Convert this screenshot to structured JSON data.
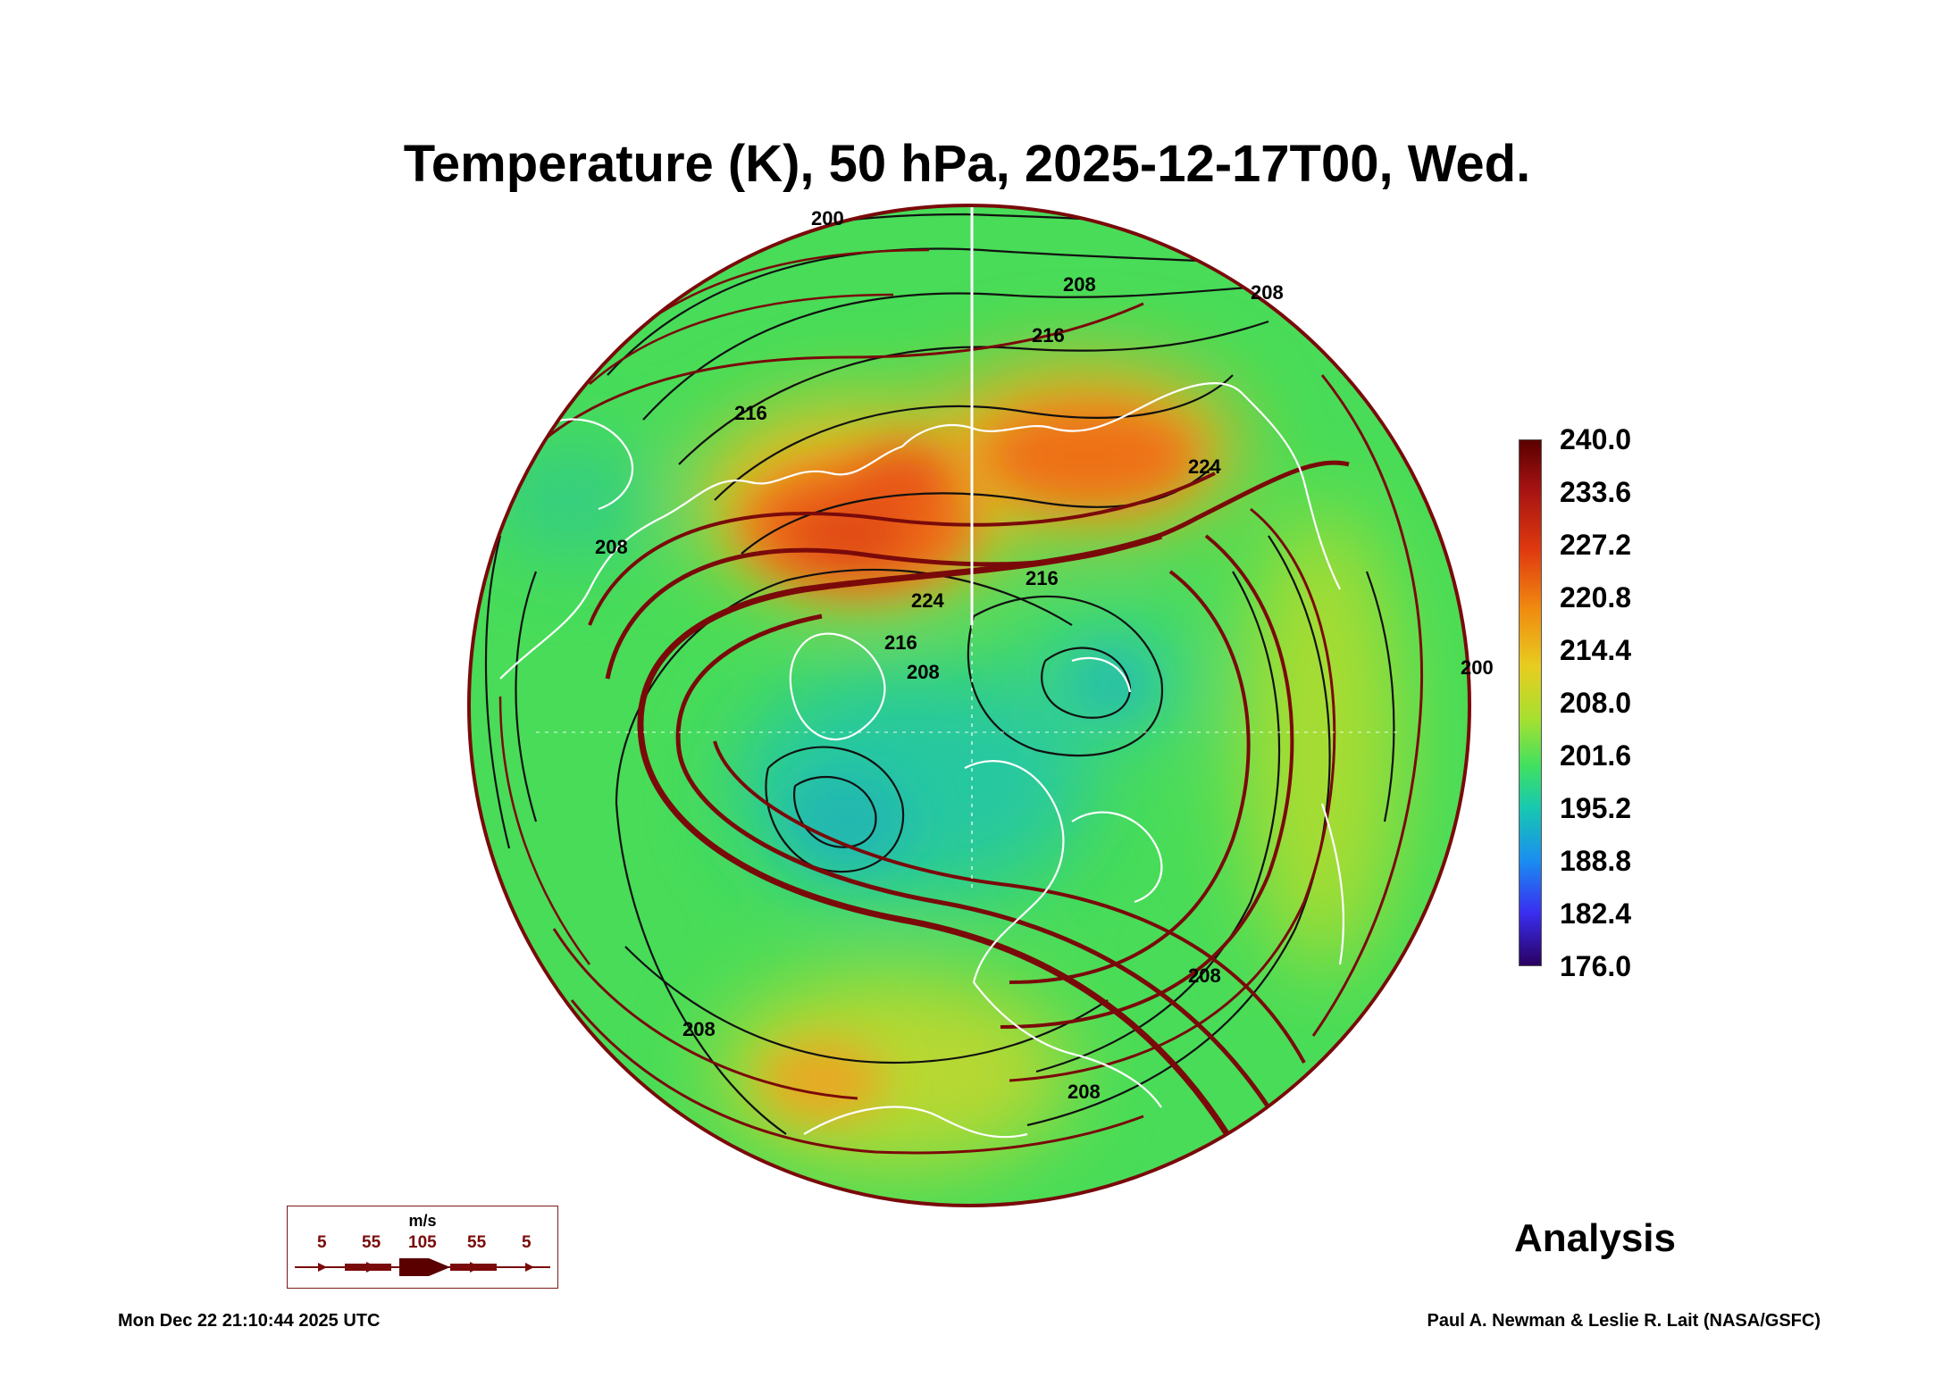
{
  "title": "Temperature (K), 50 hPa, 2025-12-17T00, Wed.",
  "colorbar": {
    "labels": [
      "240.0",
      "233.6",
      "227.2",
      "220.8",
      "214.4",
      "208.0",
      "201.6",
      "195.2",
      "188.8",
      "182.4",
      "176.0"
    ]
  },
  "contour_labels": [
    "200",
    "208",
    "216",
    "216",
    "208",
    "224",
    "216",
    "208",
    "216",
    "224",
    "208",
    "208",
    "208",
    "200",
    "208"
  ],
  "wind_legend": {
    "unit": "m/s",
    "ticks": [
      "5",
      "55",
      "105",
      "55",
      "5"
    ]
  },
  "product_label": "Analysis",
  "timestamp": "Mon Dec 22 21:10:44 2025 UTC",
  "credit": "Paul A. Newman & Leslie R. Lait (NASA/GSFC)",
  "colors": {
    "warm": "#e0501a",
    "cool": "#20b8a8",
    "streamline": "#7a0a0a",
    "coast": "#ffffff"
  }
}
